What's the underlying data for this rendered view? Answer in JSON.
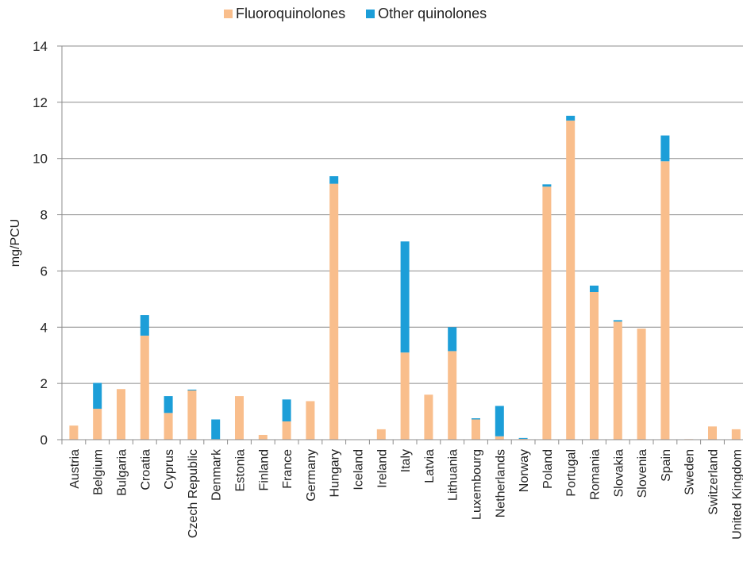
{
  "chart_data": {
    "type": "bar",
    "stacked": true,
    "title": "",
    "xlabel": "",
    "ylabel": "mg/PCU",
    "ylim": [
      0,
      14
    ],
    "yticks": [
      0,
      2,
      4,
      6,
      8,
      10,
      12,
      14
    ],
    "grid": true,
    "legend_position": "top",
    "categories": [
      "Austria",
      "Belgium",
      "Bulgaria",
      "Croatia",
      "Cyprus",
      "Czech Republic",
      "Denmark",
      "Estonia",
      "Finland",
      "France",
      "Germany",
      "Hungary",
      "Iceland",
      "Ireland",
      "Italy",
      "Latvia",
      "Lithuania",
      "Luxembourg",
      "Netherlands",
      "Norway",
      "Poland",
      "Portugal",
      "Romania",
      "Slovakia",
      "Slovenia",
      "Spain",
      "Sweden",
      "Switzerland",
      "United Kingdom"
    ],
    "series": [
      {
        "name": "Fluoroquinolones",
        "color": "#F9BE8C",
        "values": [
          0.5,
          1.1,
          1.8,
          3.7,
          0.95,
          1.75,
          0.02,
          1.55,
          0.17,
          0.65,
          1.37,
          9.1,
          0.0,
          0.37,
          3.1,
          1.6,
          3.15,
          0.72,
          0.12,
          0.03,
          9.0,
          11.35,
          5.25,
          4.2,
          3.95,
          9.9,
          0.02,
          0.47,
          0.37
        ]
      },
      {
        "name": "Other quinolones",
        "color": "#1C9ED8",
        "values": [
          0.0,
          0.92,
          0.0,
          0.73,
          0.6,
          0.03,
          0.7,
          0.0,
          0.0,
          0.78,
          0.0,
          0.27,
          0.0,
          0.0,
          3.95,
          0.0,
          0.85,
          0.04,
          1.08,
          0.03,
          0.08,
          0.17,
          0.23,
          0.05,
          0.0,
          0.92,
          0.0,
          0.0,
          0.0
        ]
      }
    ]
  }
}
